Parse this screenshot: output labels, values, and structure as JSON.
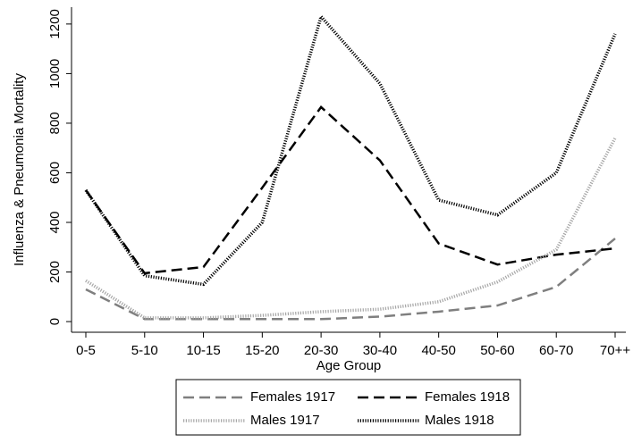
{
  "chart_data": {
    "type": "line",
    "x_label": "Age Group",
    "y_label": "Influenza & Pneumonia Mortality",
    "categories": [
      "0-5",
      "5-10",
      "10-15",
      "15-20",
      "20-30",
      "30-40",
      "40-50",
      "50-60",
      "60-70",
      "70++"
    ],
    "series": [
      {
        "name": "Females 1917",
        "color": "#7f7f7f",
        "dash": "dashed",
        "values": [
          130,
          10,
          10,
          10,
          10,
          20,
          40,
          65,
          140,
          335
        ]
      },
      {
        "name": "Females 1918",
        "color": "#000000",
        "dash": "dashed",
        "values": [
          530,
          195,
          220,
          540,
          865,
          650,
          315,
          230,
          270,
          295
        ]
      },
      {
        "name": "Males 1917",
        "color": "#a6a6a6",
        "dash": "dotted",
        "values": [
          165,
          15,
          15,
          25,
          40,
          50,
          80,
          160,
          290,
          740
        ]
      },
      {
        "name": "Males 1918",
        "color": "#000000",
        "dash": "dotted",
        "values": [
          530,
          185,
          150,
          400,
          1230,
          960,
          490,
          430,
          600,
          1160
        ]
      }
    ],
    "ylim": [
      -43,
      1268
    ],
    "yticks": [
      0,
      200,
      400,
      600,
      800,
      1000,
      1200
    ],
    "legend": "bottom"
  }
}
